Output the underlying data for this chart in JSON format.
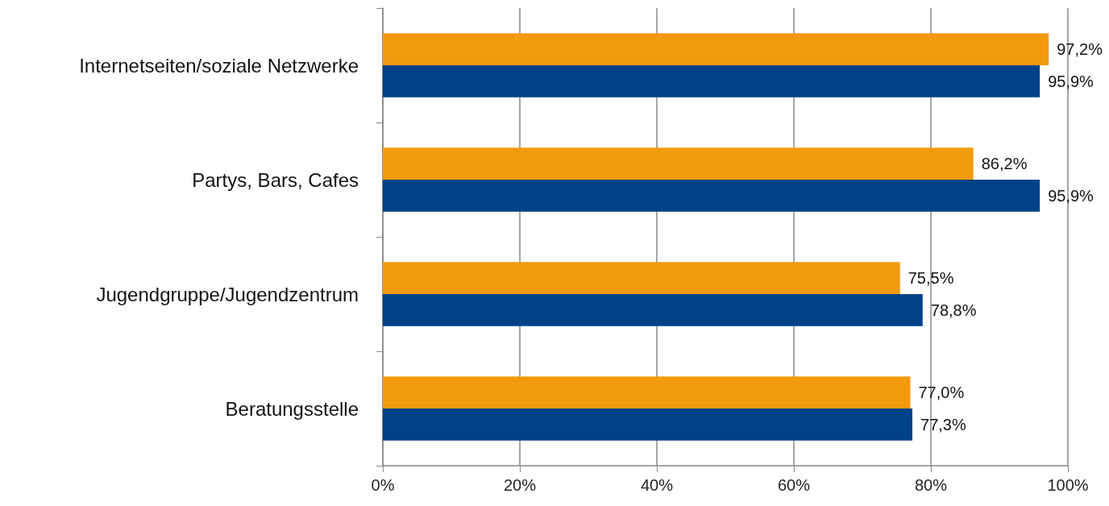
{
  "chart_data": {
    "type": "bar",
    "orientation": "horizontal",
    "categories": [
      "Internetseiten/soziale Netzwerke",
      "Partys, Bars, Cafes",
      "Jugendgruppe/Jugendzentrum",
      "Beratungsstelle"
    ],
    "series": [
      {
        "color": "#f39a10",
        "values": [
          97.2,
          86.2,
          75.5,
          77.0
        ],
        "value_labels": [
          "97,2%",
          "86,2%",
          "75,5%",
          "77,0%"
        ]
      },
      {
        "color": "#004287",
        "values": [
          95.9,
          95.9,
          78.8,
          77.3
        ],
        "value_labels": [
          "95,9%",
          "95,9%",
          "78,8%",
          "77,3%"
        ]
      }
    ],
    "xlim": [
      0,
      100
    ],
    "xticks": [
      {
        "value": 0,
        "label": "0%"
      },
      {
        "value": 20,
        "label": "20%"
      },
      {
        "value": 40,
        "label": "40%"
      },
      {
        "value": 60,
        "label": "60%"
      },
      {
        "value": 80,
        "label": "80%"
      },
      {
        "value": 100,
        "label": "100%"
      }
    ],
    "grid": "x"
  }
}
